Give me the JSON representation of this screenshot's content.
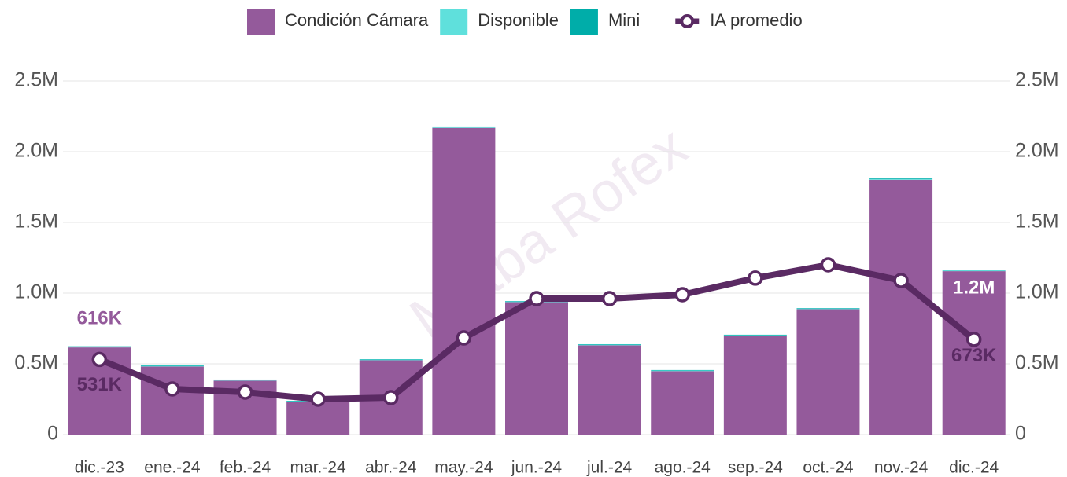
{
  "chart_data": {
    "type": "bar",
    "watermark": "Matba Rofex",
    "categories": [
      "dic.-23",
      "ene.-24",
      "feb.-24",
      "mar.-24",
      "abr.-24",
      "may.-24",
      "jun.-24",
      "jul.-24",
      "ago.-24",
      "sep.-24",
      "oct.-24",
      "nov.-24",
      "dic.-24"
    ],
    "series": [
      {
        "name": "Condición Cámara",
        "color": "#945a9b",
        "values": [
          616000,
          481000,
          381000,
          231000,
          525000,
          2168000,
          936000,
          631000,
          448000,
          696000,
          886000,
          1801000,
          1155000
        ],
        "value_labels": [
          "616K",
          null,
          null,
          null,
          null,
          null,
          null,
          null,
          null,
          null,
          null,
          null,
          "1.2M"
        ]
      },
      {
        "name": "Disponible",
        "color": "#5fe0dc",
        "values": [
          5000,
          5000,
          5000,
          5000,
          5000,
          6000,
          5000,
          5000,
          5000,
          6000,
          5000,
          6000,
          5000
        ]
      },
      {
        "name": "Mini",
        "color": "#00ada9",
        "values": [
          3000,
          3000,
          3000,
          3000,
          3000,
          4000,
          3000,
          3000,
          3000,
          4000,
          3000,
          4000,
          3000
        ]
      },
      {
        "name": "IA promedio",
        "type": "line",
        "axis": "y2",
        "color": "#5a2a63",
        "values": [
          531000,
          322000,
          300000,
          250000,
          261000,
          683000,
          961000,
          961000,
          989000,
          1106000,
          1200000,
          1089000,
          673000
        ],
        "value_labels": [
          "531K",
          null,
          null,
          null,
          null,
          null,
          null,
          null,
          null,
          null,
          null,
          null,
          "673K"
        ]
      }
    ],
    "ylim": [
      0,
      2500000
    ],
    "yticks": [
      0,
      {
        "value": 500000,
        "label": "0.5M"
      },
      {
        "value": 1000000,
        "label": "1.0M"
      },
      {
        "value": 1500000,
        "label": "1.5M"
      },
      {
        "value": 2000000,
        "label": "2.0M"
      },
      {
        "value": 2500000,
        "label": "2.5M"
      }
    ],
    "y2lim": [
      0,
      2500000
    ],
    "y2ticks": [
      0,
      {
        "value": 500000,
        "label": "0.5M"
      },
      {
        "value": 1000000,
        "label": "1.0M"
      },
      {
        "value": 1500000,
        "label": "1.5M"
      },
      {
        "value": 2000000,
        "label": "2.0M"
      },
      {
        "value": 2500000,
        "label": "2.5M"
      }
    ],
    "grid": true,
    "legend": "top"
  }
}
